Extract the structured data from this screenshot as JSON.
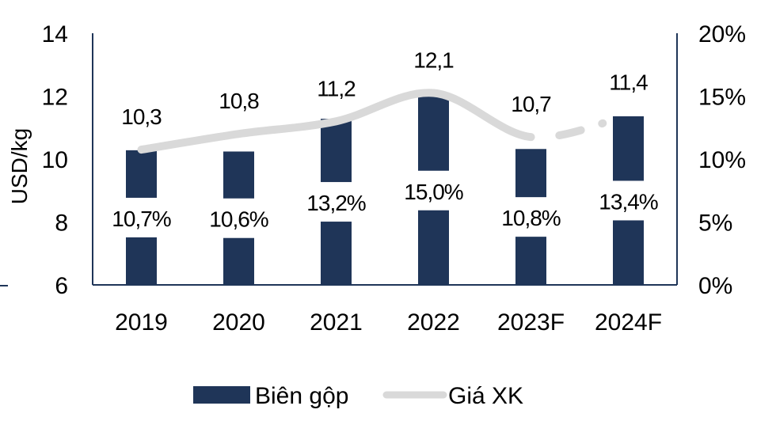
{
  "chart_data": {
    "type": "bar+line",
    "categories": [
      "2019",
      "2020",
      "2021",
      "2022",
      "2023F",
      "2024F"
    ],
    "series": [
      {
        "name": "Biên gộp",
        "type": "bar",
        "axis": "right",
        "values": [
          10.7,
          10.6,
          13.2,
          15.0,
          10.8,
          13.4
        ],
        "labels": [
          "10,7%",
          "10,6%",
          "13,2%",
          "15,0%",
          "10,8%",
          "13,4%"
        ],
        "color": "#1f3558"
      },
      {
        "name": "Giá XK",
        "type": "line",
        "axis": "left",
        "values": [
          10.3,
          10.8,
          11.2,
          12.1,
          10.7,
          11.4
        ],
        "labels": [
          "10,3",
          "10,8",
          "11,2",
          "12,1",
          "10,7",
          "11,4"
        ],
        "color": "#d9d9d9",
        "dashed_from": "2023F"
      }
    ],
    "ylabel": "USD/kg",
    "ylim": [
      6,
      14
    ],
    "yticks": [
      "6",
      "8",
      "10",
      "12",
      "14"
    ],
    "y2lim": [
      0,
      20
    ],
    "y2ticks": [
      "0%",
      "5%",
      "10%",
      "15%",
      "20%"
    ],
    "legend": {
      "position": "bottom",
      "entries": [
        "Biên gộp",
        "Giá XK"
      ]
    },
    "grid": false
  }
}
